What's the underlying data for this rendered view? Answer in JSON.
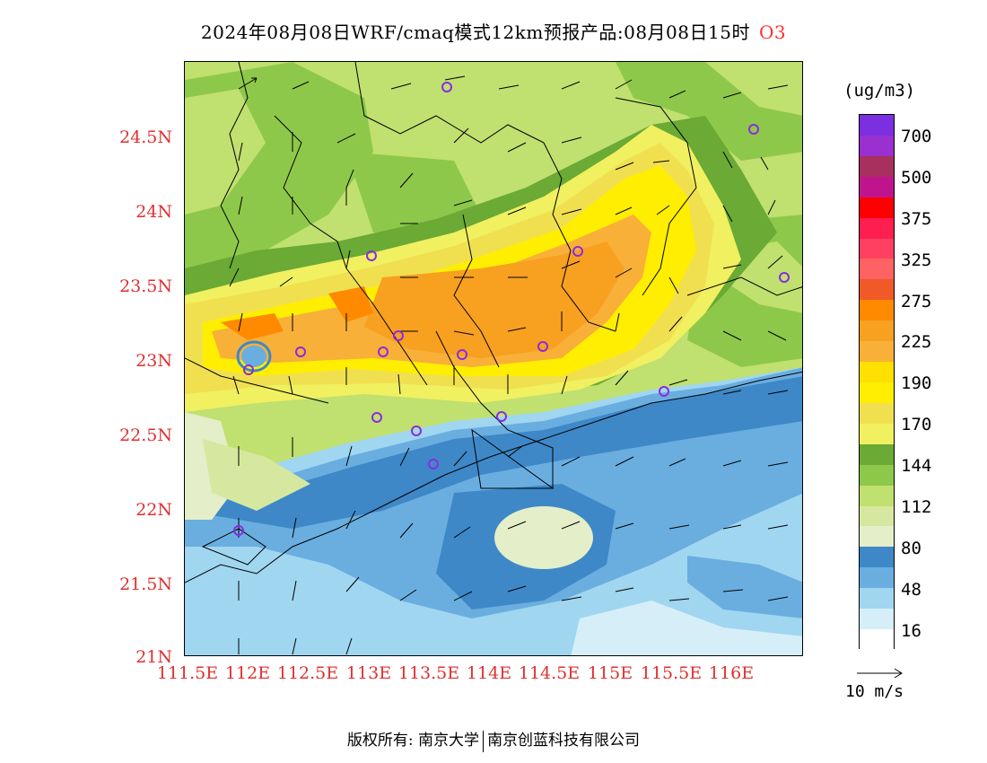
{
  "title": {
    "main": "2024年08月08日WRF/cmaq模式12km预报产品:08月08日15时",
    "species": "O3"
  },
  "axes": {
    "y_labels": [
      "24.5N",
      "24N",
      "23.5N",
      "23N",
      "22.5N",
      "22N",
      "21.5N",
      "21N"
    ],
    "x_labels": [
      "111.5E",
      "112E",
      "112.5E",
      "113E",
      "113.5E",
      "114E",
      "114.5E",
      "115E",
      "115.5E",
      "116E"
    ]
  },
  "colorbar": {
    "unit": "(ug/m3)",
    "labels": [
      "700",
      "500",
      "375",
      "325",
      "275",
      "225",
      "190",
      "170",
      "144",
      "112",
      "80",
      "48",
      "16"
    ],
    "colors": [
      "#7b2fe0",
      "#9a30d0",
      "#a8305e",
      "#c0148c",
      "#ff0000",
      "#ff1e50",
      "#ff4060",
      "#ff6262",
      "#f05a28",
      "#ff8a00",
      "#f8a020",
      "#f8b038",
      "#ffe000",
      "#ffee00",
      "#f0e050",
      "#f0f060",
      "#6aaa35",
      "#8ec84a",
      "#c0e070",
      "#d6e8a0",
      "#e4eec8",
      "#3e88c8",
      "#6aaee0",
      "#a0d6f0",
      "#d6eef8",
      "#ffffff"
    ]
  },
  "vector_ref": {
    "label": "10 m/s"
  },
  "stations": [
    "station-marker"
  ],
  "footer": {
    "left": "版权所有: 南京大学",
    "right": "南京创蓝科技有限公司"
  }
}
